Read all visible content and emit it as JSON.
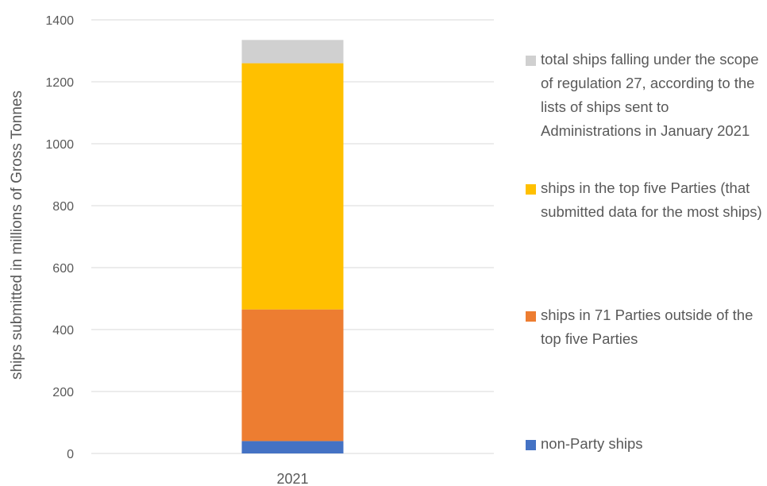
{
  "chart_data": {
    "type": "bar",
    "stacked": true,
    "categories": [
      "2021"
    ],
    "ylabel": "ships submitted in millions of Gross Tonnes",
    "ylim": [
      0,
      1400
    ],
    "yticks": [
      0,
      200,
      400,
      600,
      800,
      1000,
      1200,
      1400
    ],
    "grid": true,
    "legend_position": "right",
    "series": [
      {
        "name": "non-Party ships",
        "values": [
          40
        ],
        "color": "#4472C4"
      },
      {
        "name": "ships in 71 Parties outside of the top five Parties",
        "values": [
          425
        ],
        "color": "#ED7D31"
      },
      {
        "name": "ships in the top five Parties (that submitted data for the most ships)",
        "values": [
          795
        ],
        "color": "#FFC000"
      },
      {
        "name": "total ships falling under the scope of regulation 27, according to the lists of ships sent to Administrations in January 2021",
        "values": [
          75
        ],
        "color": "#D0D0D0"
      }
    ]
  }
}
